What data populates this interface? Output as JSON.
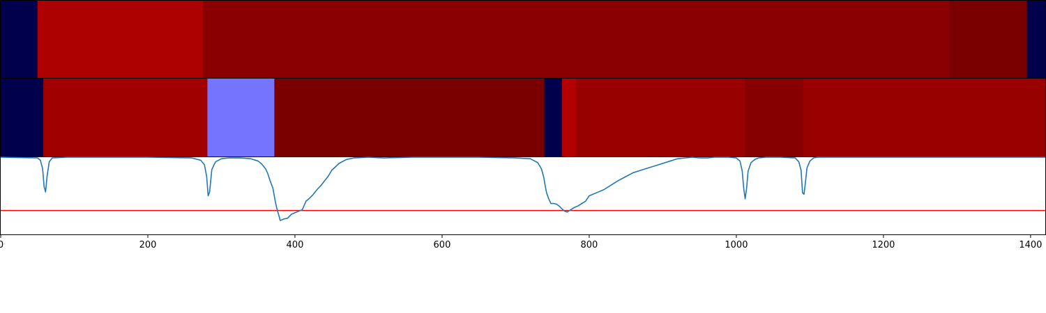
{
  "chart_data": [
    {
      "type": "heatmap",
      "panel": "top-strip",
      "xlim": [
        0,
        1420
      ],
      "segments": [
        {
          "start": 0,
          "end": 50,
          "color": "#00004d"
        },
        {
          "start": 50,
          "end": 275,
          "color": "#ad0000"
        },
        {
          "start": 275,
          "end": 1290,
          "color": "#8a0000"
        },
        {
          "start": 1290,
          "end": 1395,
          "color": "#7a0000"
        },
        {
          "start": 1395,
          "end": 1420,
          "color": "#00004d"
        }
      ]
    },
    {
      "type": "heatmap",
      "panel": "middle-strip",
      "xlim": [
        0,
        1420
      ],
      "segments": [
        {
          "start": 0,
          "end": 58,
          "color": "#00004d"
        },
        {
          "start": 58,
          "end": 281,
          "color": "#a10000"
        },
        {
          "start": 281,
          "end": 372,
          "color": "#7474ff"
        },
        {
          "start": 372,
          "end": 739,
          "color": "#7a0000"
        },
        {
          "start": 739,
          "end": 763,
          "color": "#00004d"
        },
        {
          "start": 763,
          "end": 782,
          "color": "#b30000"
        },
        {
          "start": 782,
          "end": 1012,
          "color": "#990000"
        },
        {
          "start": 1012,
          "end": 1091,
          "color": "#870000"
        },
        {
          "start": 1091,
          "end": 1420,
          "color": "#990000"
        }
      ]
    },
    {
      "type": "line",
      "panel": "signal",
      "xlim": [
        0,
        1420
      ],
      "ylim": [
        0,
        1
      ],
      "line_color": "#1f77b4",
      "threshold": {
        "y": 0.31,
        "color": "#ff0000"
      },
      "x": [
        0,
        50,
        54,
        57,
        59,
        61,
        63,
        66,
        70,
        90,
        200,
        260,
        272,
        277,
        280,
        282,
        284,
        287,
        292,
        300,
        310,
        325,
        340,
        350,
        355,
        360,
        363,
        366,
        370,
        373,
        375,
        378,
        380,
        385,
        390,
        395,
        400,
        405,
        410,
        415,
        420,
        425,
        430,
        435,
        440,
        445,
        450,
        460,
        470,
        480,
        500,
        520,
        540,
        560,
        600,
        650,
        700,
        720,
        730,
        735,
        738,
        740,
        742,
        745,
        748,
        752,
        756,
        760,
        763,
        767,
        770,
        775,
        780,
        785,
        790,
        795,
        800,
        810,
        820,
        830,
        840,
        850,
        860,
        870,
        880,
        890,
        900,
        910,
        920,
        930,
        940,
        950,
        960,
        970,
        980,
        990,
        1000,
        1005,
        1008,
        1010,
        1012,
        1014,
        1016,
        1020,
        1025,
        1030,
        1040,
        1060,
        1080,
        1085,
        1088,
        1090,
        1092,
        1094,
        1096,
        1100,
        1105,
        1110,
        1120,
        1150,
        1200,
        1300,
        1420
      ],
      "y": [
        1,
        0.99,
        0.96,
        0.85,
        0.62,
        0.55,
        0.75,
        0.94,
        0.99,
        1,
        1,
        0.99,
        0.96,
        0.9,
        0.75,
        0.5,
        0.55,
        0.84,
        0.94,
        0.98,
        0.99,
        0.99,
        0.98,
        0.95,
        0.91,
        0.85,
        0.79,
        0.7,
        0.6,
        0.44,
        0.35,
        0.25,
        0.18,
        0.2,
        0.21,
        0.26,
        0.28,
        0.3,
        0.32,
        0.43,
        0.47,
        0.52,
        0.58,
        0.63,
        0.69,
        0.75,
        0.83,
        0.92,
        0.97,
        0.99,
        1,
        0.99,
        0.995,
        1,
        1,
        1,
        0.99,
        0.98,
        0.93,
        0.85,
        0.75,
        0.64,
        0.54,
        0.46,
        0.4,
        0.4,
        0.39,
        0.36,
        0.33,
        0.3,
        0.29,
        0.32,
        0.35,
        0.37,
        0.4,
        0.43,
        0.5,
        0.54,
        0.58,
        0.64,
        0.7,
        0.75,
        0.8,
        0.83,
        0.86,
        0.89,
        0.92,
        0.95,
        0.98,
        0.99,
        1,
        0.99,
        0.99,
        1,
        1,
        1,
        0.99,
        0.95,
        0.82,
        0.6,
        0.46,
        0.6,
        0.82,
        0.93,
        0.97,
        0.99,
        1,
        1,
        0.99,
        0.94,
        0.83,
        0.54,
        0.52,
        0.68,
        0.86,
        0.95,
        0.99,
        1,
        1,
        1,
        1,
        1,
        1
      ]
    }
  ],
  "x_axis": {
    "ticks": [
      0,
      200,
      400,
      600,
      800,
      1000,
      1200,
      1400
    ],
    "tick_labels": [
      "0",
      "200",
      "400",
      "600",
      "800",
      "1000",
      "1200",
      "1400"
    ]
  }
}
